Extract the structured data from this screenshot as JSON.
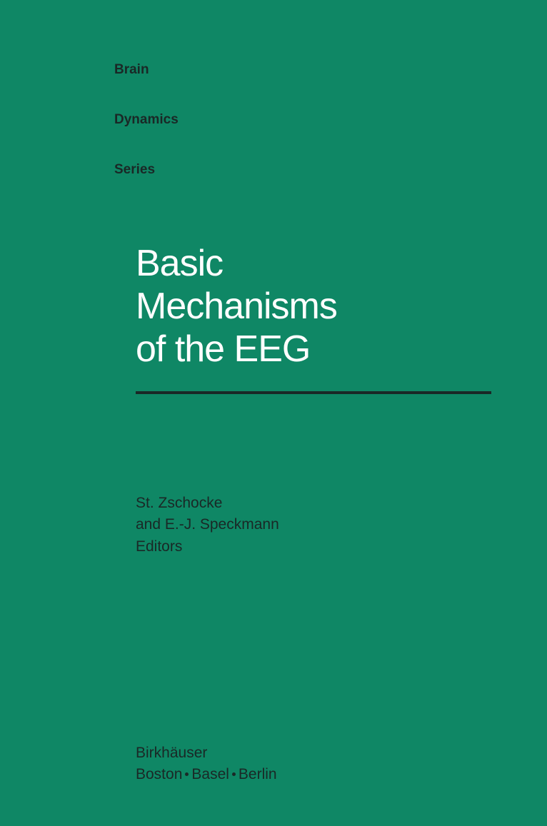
{
  "cover": {
    "background_color": "#0f8765",
    "text_color_white": "#ffffff",
    "text_color_dark": "#1a2826",
    "underline_color": "#1a2826",
    "wave_color": "#ffffff"
  },
  "series": {
    "label_color": "#1a2826",
    "labels": [
      "Brain",
      "Dynamics",
      "Series"
    ],
    "label_fontsize": 19,
    "wave_stroke_width": 1.1,
    "paths": [
      "M0,20 L90,20 L95,17 L98,22 L102,15 L106,25 L110,10 L115,30 L120,8 L125,32 L130,6 L135,34 L140,5 L145,33 L150,7 L155,30 L160,9 L165,28 L170,12 L175,26 L180,14 L185,24 L190,16 L195,22 L200,18 L205,21 L210,19 L215,20 L220,20 L225,19 L230,21 L235,18 L240,20 L280,20 L310,20",
      "M0,20 L75,20 L80,18 L85,22 L90,15 L95,25 L100,12 L105,28 L110,10 L115,30 L120,11 L125,29 L130,13 L135,27 L140,15 L145,25 L150,17 L155,23 L160,18 L165,22 L170,19 L175,21 L180,20 L185,20 L190,19 L195,21 L200,18 L205,22 L210,19 L215,20 L250,20 L280,20 L310,20",
      "M0,20 L65,20 L70,19 L75,21 L80,17 L85,23 L90,15 L95,25 L100,14 L105,26 L110,15 L115,25 L120,16 L125,24 L130,17 L135,23 L140,18 L145,22 L150,19 L155,21 L160,19 L165,20 L170,20 L175,19 L180,21 L185,20 L190,20 L220,20 L260,20 L310,20"
    ]
  },
  "title": {
    "lines": [
      "Basic",
      "Mechanisms",
      "of the EEG"
    ],
    "fontsize": 52,
    "color": "#ffffff"
  },
  "editors": {
    "lines": [
      "St. Zschocke",
      "and E.-J. Speckmann",
      "Editors"
    ],
    "fontsize": 21,
    "color": "#1a2826"
  },
  "publisher": {
    "name": "Birkhäuser",
    "cities": [
      "Boston",
      "Basel",
      "Berlin"
    ],
    "fontsize": 21,
    "color": "#1a2826",
    "separator_color": "#1a2826"
  }
}
